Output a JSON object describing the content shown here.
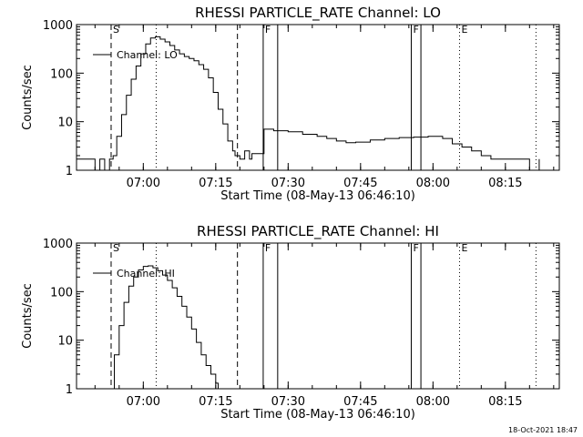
{
  "footer": {
    "timestamp": "18-Oct-2021 18:47"
  },
  "chart_data": [
    {
      "type": "line",
      "title": "RHESSI PARTICLE_RATE Channel: LO",
      "xlabel": "Start Time (08-May-13 06:46:10)",
      "ylabel": "Counts/sec",
      "xlim": [
        "06:46:10",
        "08:26:10"
      ],
      "ylim": [
        1,
        1000
      ],
      "yscale": "log",
      "x_ticks": [
        "07:00",
        "07:15",
        "07:30",
        "07:45",
        "08:00",
        "08:15"
      ],
      "y_ticks": [
        "1",
        "10",
        "100",
        "1000"
      ],
      "legend": {
        "label": "Channel: LO",
        "placement": "top-left"
      },
      "series": [
        {
          "name": "Channel: LO",
          "x": [
            "06:46:10",
            "06:49:00",
            "06:50:00",
            "06:51:00",
            "06:52:00",
            "06:53:00",
            "06:53:45",
            "06:54:30",
            "06:55:30",
            "06:56:30",
            "06:57:30",
            "06:58:30",
            "06:59:30",
            "07:00:30",
            "07:01:30",
            "07:02:30",
            "07:03:30",
            "07:04:30",
            "07:05:30",
            "07:06:30",
            "07:07:30",
            "07:08:30",
            "07:09:30",
            "07:10:30",
            "07:11:30",
            "07:12:30",
            "07:13:30",
            "07:14:30",
            "07:15:30",
            "07:16:30",
            "07:17:30",
            "07:18:30",
            "07:19:00",
            "07:20:00",
            "07:21:00",
            "07:22:00",
            "07:22:30",
            "07:25:00",
            "07:27:00",
            "07:30:00",
            "07:33:00",
            "07:36:00",
            "07:38:00",
            "07:40:00",
            "07:42:00",
            "07:44:00",
            "07:47:00",
            "07:50:00",
            "07:53:00",
            "07:56:00",
            "07:59:00",
            "08:02:00",
            "08:04:00",
            "08:06:00",
            "08:08:00",
            "08:10:00",
            "08:12:00",
            "08:14:00",
            "08:16:00",
            "08:18:00",
            "08:20:00",
            "08:22:00"
          ],
          "y": [
            1.7,
            1.7,
            1.0,
            1.7,
            1.0,
            1.7,
            2.0,
            5,
            14,
            35,
            75,
            140,
            250,
            400,
            530,
            560,
            500,
            440,
            370,
            300,
            250,
            220,
            200,
            180,
            150,
            120,
            80,
            40,
            18,
            9,
            4,
            2.5,
            2,
            1.7,
            2.5,
            1.7,
            2.2,
            7.0,
            6.5,
            6.2,
            5.5,
            5.0,
            4.5,
            4.0,
            3.7,
            3.8,
            4.2,
            4.5,
            4.7,
            4.8,
            5.0,
            4.5,
            3.5,
            3.0,
            2.5,
            2.0,
            1.7,
            1.7,
            1.7,
            1.7,
            1.0,
            1.7
          ]
        }
      ],
      "markers": [
        {
          "label": "S",
          "time": "06:53:20",
          "style": "dashed"
        },
        {
          "label": "",
          "time": "07:02:40",
          "style": "dotted"
        },
        {
          "label": "",
          "time": "07:19:30",
          "style": "dashed"
        },
        {
          "label": "F",
          "time": "07:24:50",
          "style": "solid"
        },
        {
          "label": "",
          "time": "07:27:50",
          "style": "solid"
        },
        {
          "label": "F",
          "time": "07:55:30",
          "style": "solid"
        },
        {
          "label": "",
          "time": "07:57:30",
          "style": "solid"
        },
        {
          "label": "E",
          "time": "08:05:30",
          "style": "dotted"
        },
        {
          "label": "",
          "time": "08:21:20",
          "style": "dotted"
        }
      ]
    },
    {
      "type": "line",
      "title": "RHESSI PARTICLE_RATE Channel: HI",
      "xlabel": "Start Time (08-May-13 06:46:10)",
      "ylabel": "Counts/sec",
      "xlim": [
        "06:46:10",
        "08:26:10"
      ],
      "ylim": [
        1,
        1000
      ],
      "yscale": "log",
      "x_ticks": [
        "07:00",
        "07:15",
        "07:30",
        "07:45",
        "08:00",
        "08:15"
      ],
      "y_ticks": [
        "1",
        "10",
        "100",
        "1000"
      ],
      "legend": {
        "label": "Channel: HI",
        "placement": "top-left"
      },
      "series": [
        {
          "name": "Channel: HI",
          "x": [
            "06:53:30",
            "06:54:00",
            "06:55:00",
            "06:56:00",
            "06:57:00",
            "06:58:00",
            "06:59:00",
            "07:00:00",
            "07:01:00",
            "07:02:00",
            "07:03:00",
            "07:04:00",
            "07:05:00",
            "07:06:00",
            "07:07:00",
            "07:08:00",
            "07:09:00",
            "07:10:00",
            "07:11:00",
            "07:12:00",
            "07:13:00",
            "07:14:00",
            "07:15:00",
            "07:15:30"
          ],
          "y": [
            1.0,
            5,
            20,
            60,
            130,
            200,
            280,
            330,
            340,
            310,
            270,
            220,
            170,
            120,
            80,
            50,
            30,
            17,
            9,
            5,
            3,
            2,
            1.3,
            1.0
          ]
        }
      ],
      "markers": [
        {
          "label": "S",
          "time": "06:53:20",
          "style": "dashed"
        },
        {
          "label": "",
          "time": "07:02:40",
          "style": "dotted"
        },
        {
          "label": "",
          "time": "07:19:30",
          "style": "dashed"
        },
        {
          "label": "F",
          "time": "07:24:50",
          "style": "solid"
        },
        {
          "label": "",
          "time": "07:27:50",
          "style": "solid"
        },
        {
          "label": "F",
          "time": "07:55:30",
          "style": "solid"
        },
        {
          "label": "",
          "time": "07:57:30",
          "style": "solid"
        },
        {
          "label": "E",
          "time": "08:05:30",
          "style": "dotted"
        },
        {
          "label": "",
          "time": "08:21:20",
          "style": "dotted"
        }
      ]
    }
  ]
}
